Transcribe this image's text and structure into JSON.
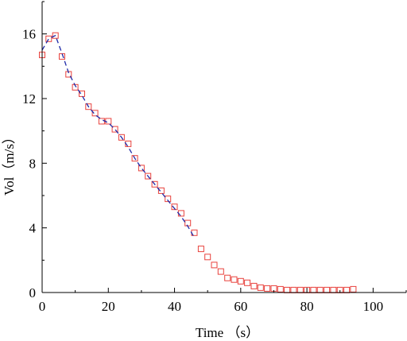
{
  "chart_data": {
    "type": "scatter",
    "xlabel": "Time （s）",
    "ylabel": "Vol（m/s）",
    "xlim": [
      0,
      110
    ],
    "ylim": [
      0,
      18
    ],
    "xticks": [
      0,
      20,
      40,
      60,
      80,
      100
    ],
    "yticks": [
      0,
      4,
      8,
      12,
      16
    ],
    "grid": false,
    "series": [
      {
        "kind": "markers",
        "marker": "square",
        "color": "#e8413c",
        "x": [
          0,
          2,
          4,
          6,
          8,
          10,
          12,
          14,
          16,
          18,
          20,
          22,
          24,
          26,
          28,
          30,
          32,
          34,
          36,
          38,
          40,
          42,
          44,
          46,
          48,
          50,
          52,
          54,
          56,
          58,
          60,
          62,
          64,
          66,
          68,
          70,
          72,
          74,
          76,
          78,
          80,
          82,
          84,
          86,
          88,
          90,
          92,
          94
        ],
        "y": [
          14.7,
          15.7,
          15.9,
          14.6,
          13.5,
          12.7,
          12.3,
          11.5,
          11.1,
          10.6,
          10.6,
          10.1,
          9.6,
          9.2,
          8.3,
          7.7,
          7.2,
          6.7,
          6.3,
          5.8,
          5.3,
          4.9,
          4.3,
          3.7,
          2.7,
          2.2,
          1.7,
          1.3,
          0.9,
          0.8,
          0.7,
          0.6,
          0.4,
          0.3,
          0.25,
          0.25,
          0.2,
          0.15,
          0.15,
          0.15,
          0.15,
          0.15,
          0.15,
          0.15,
          0.15,
          0.15,
          0.15,
          0.2
        ]
      },
      {
        "kind": "line",
        "style": "dashed",
        "color": "#1f2aa8",
        "x": [
          0,
          2,
          4,
          6,
          8,
          10,
          12,
          14,
          16,
          18,
          20,
          22,
          24,
          26,
          28,
          30,
          32,
          34,
          36,
          38,
          40,
          42,
          44,
          46
        ],
        "y": [
          15.0,
          15.7,
          15.9,
          14.8,
          13.6,
          12.8,
          12.2,
          11.5,
          11.0,
          10.7,
          10.5,
          10.1,
          9.6,
          9.0,
          8.3,
          7.7,
          7.2,
          6.7,
          6.2,
          5.7,
          5.2,
          4.7,
          4.1,
          3.4
        ]
      }
    ]
  }
}
